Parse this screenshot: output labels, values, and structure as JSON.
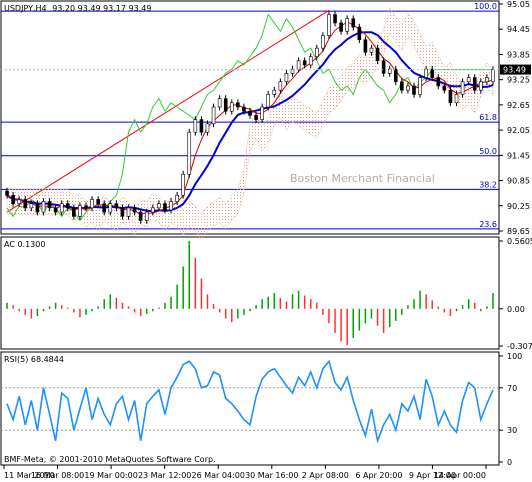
{
  "chart_data": [
    {
      "type": "candlestick",
      "symbol": "USDJPY,H4",
      "ohlc": "93.20 93.49 93.17 93.49",
      "bid_label": "93.49",
      "ylim": [
        89.65,
        95.05
      ],
      "y_ticks": [
        "95.05",
        "94.45",
        "93.85",
        "93.25",
        "92.65",
        "92.05",
        "91.45",
        "90.85",
        "90.25",
        "89.65"
      ],
      "y_tick_values": [
        95.05,
        94.45,
        93.85,
        93.25,
        92.65,
        92.05,
        91.45,
        90.85,
        90.25,
        89.65
      ],
      "fibo_levels": [
        {
          "label": "100.0",
          "value": 94.88
        },
        {
          "label": "61.8",
          "value": 92.24
        },
        {
          "label": "50.0",
          "value": 91.44
        },
        {
          "label": "38.2",
          "value": 90.64
        },
        {
          "label": "23.6",
          "value": 89.7
        }
      ],
      "watermark": "Boston Merchant Financial",
      "x_labels": [
        "11 Mar 2010",
        "16 Mar 08:00",
        "19 Mar 00:00",
        "23 Mar 12:00",
        "26 Mar 04:00",
        "30 Mar 16:00",
        "2 Apr 08:00",
        "6 Apr 20:00",
        "9 Apr 12:00",
        "14 Apr 00:00"
      ],
      "close": [
        90.5,
        90.3,
        90.4,
        90.2,
        90.3,
        90.1,
        90.35,
        90.2,
        90.1,
        90.3,
        90.2,
        90.0,
        90.25,
        90.2,
        90.4,
        90.3,
        90.1,
        90.3,
        90.2,
        90.0,
        90.2,
        90.1,
        89.9,
        90.1,
        90.2,
        90.3,
        90.15,
        90.35,
        90.5,
        91.0,
        92.0,
        92.3,
        92.0,
        92.2,
        92.6,
        92.8,
        92.5,
        92.7,
        92.6,
        92.5,
        92.4,
        92.3,
        92.6,
        92.9,
        93.0,
        93.2,
        93.4,
        93.5,
        93.7,
        93.6,
        93.8,
        94.0,
        94.3,
        94.8,
        94.6,
        94.4,
        94.7,
        94.5,
        94.2,
        93.9,
        94.0,
        93.7,
        93.4,
        93.5,
        93.2,
        93.0,
        93.1,
        92.9,
        93.3,
        93.5,
        93.3,
        93.1,
        93.0,
        92.7,
        92.9,
        93.2,
        93.3,
        93.0,
        93.2,
        93.3,
        93.49
      ],
      "open": [
        90.6,
        90.5,
        90.3,
        90.4,
        90.2,
        90.3,
        90.1,
        90.35,
        90.2,
        90.1,
        90.3,
        90.2,
        90.0,
        90.25,
        90.2,
        90.4,
        90.3,
        90.1,
        90.3,
        90.2,
        90.0,
        90.2,
        90.1,
        89.9,
        90.1,
        90.2,
        90.3,
        90.15,
        90.35,
        90.5,
        91.0,
        92.0,
        92.3,
        92.0,
        92.2,
        92.6,
        92.8,
        92.5,
        92.7,
        92.6,
        92.5,
        92.4,
        92.3,
        92.6,
        92.9,
        93.0,
        93.2,
        93.4,
        93.5,
        93.7,
        93.6,
        93.8,
        94.0,
        94.3,
        94.8,
        94.6,
        94.4,
        94.7,
        94.5,
        94.2,
        93.9,
        94.0,
        93.7,
        93.4,
        93.5,
        93.2,
        93.0,
        93.1,
        92.9,
        93.3,
        93.5,
        93.3,
        93.1,
        93.0,
        92.7,
        92.9,
        93.2,
        93.3,
        93.0,
        93.2,
        93.2
      ]
    },
    {
      "type": "bar",
      "label": "AC 0.1300",
      "ylim": [
        -0.3074,
        0.5605
      ],
      "y_ticks": [
        "0.5605",
        "0.00",
        "-0.3074"
      ],
      "y_tick_values": [
        0.5605,
        0.0,
        -0.3074
      ],
      "values": [
        0.05,
        0.03,
        -0.02,
        -0.05,
        -0.08,
        -0.06,
        -0.02,
        0.02,
        0.05,
        0.03,
        0.01,
        -0.03,
        -0.07,
        -0.05,
        -0.02,
        0.02,
        0.08,
        0.12,
        0.09,
        0.05,
        0.02,
        -0.03,
        -0.06,
        -0.04,
        -0.02,
        0.01,
        0.05,
        0.1,
        0.2,
        0.35,
        0.56,
        0.42,
        0.25,
        0.12,
        0.04,
        -0.03,
        -0.08,
        -0.11,
        -0.08,
        -0.05,
        -0.02,
        0.03,
        0.08,
        0.1,
        0.13,
        0.09,
        0.06,
        0.12,
        0.15,
        0.11,
        0.08,
        0.05,
        -0.05,
        -0.12,
        -0.2,
        -0.27,
        -0.3,
        -0.24,
        -0.18,
        -0.12,
        -0.08,
        -0.14,
        -0.2,
        -0.15,
        -0.1,
        -0.05,
        0.03,
        0.08,
        0.15,
        0.12,
        0.07,
        0.02,
        -0.03,
        -0.06,
        -0.02,
        0.03,
        0.08,
        0.05,
        -0.02,
        0.02,
        0.13
      ]
    },
    {
      "type": "line",
      "label": "RSI(5) 68.4844",
      "ylim": [
        0,
        100
      ],
      "y_ticks": [
        "100",
        "70",
        "30",
        "0"
      ],
      "y_tick_values": [
        100,
        70,
        30,
        0
      ],
      "values": [
        55,
        40,
        62,
        35,
        58,
        30,
        70,
        45,
        20,
        65,
        60,
        30,
        50,
        70,
        40,
        60,
        45,
        35,
        55,
        62,
        40,
        58,
        20,
        55,
        62,
        68,
        45,
        70,
        80,
        92,
        95,
        88,
        70,
        72,
        85,
        82,
        60,
        55,
        48,
        40,
        35,
        62,
        78,
        85,
        88,
        80,
        72,
        65,
        80,
        72,
        85,
        70,
        88,
        95,
        75,
        68,
        80,
        58,
        40,
        25,
        50,
        20,
        35,
        45,
        30,
        55,
        48,
        62,
        40,
        78,
        62,
        35,
        48,
        35,
        28,
        58,
        75,
        70,
        40,
        55,
        68
      ]
    }
  ],
  "footer": {
    "copyright": "BMF-Meta, © 2001-2010 MetaQuotes Software Corp."
  }
}
